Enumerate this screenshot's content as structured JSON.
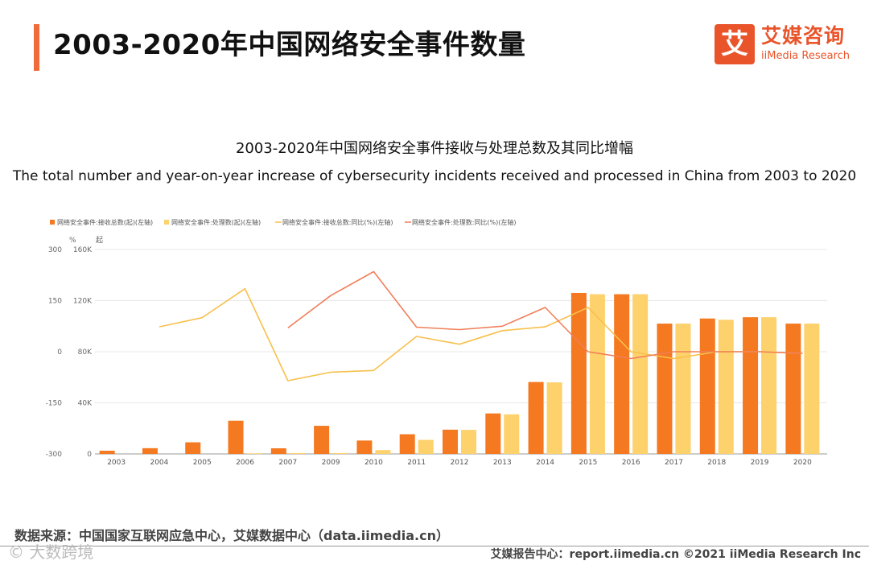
{
  "page": {
    "title": "2003-2020年中国网络安全事件数量",
    "logo_mark": "艾",
    "logo_cn": "艾媒咨询",
    "logo_en": "iiMedia Research",
    "source": "数据来源：中国国家互联网应急中心，艾媒数据中心（data.iimedia.cn）",
    "watermark": "© 大数跨境",
    "footer": "艾媒报告中心：report.iimedia.cn   ©2021  iiMedia Research  Inc"
  },
  "colors": {
    "accent": "#f06a3a",
    "received": "#f47920",
    "processed": "#fdd16b",
    "received_yoy": "#f8c04c",
    "processed_yoy": "#f07f5a"
  },
  "chart_data": {
    "type": "bar",
    "title": "2003-2020年中国网络安全事件接收与处理总数及其同比增幅",
    "subtitle": "The total number and year-on-year increase of cybersecurity incidents received and processed in China from 2003 to 2020",
    "categories": [
      "2003",
      "2004",
      "2005",
      "2006",
      "2007",
      "2009",
      "2010",
      "2011",
      "2012",
      "2013",
      "2014",
      "2015",
      "2016",
      "2017",
      "2018",
      "2019",
      "2020"
    ],
    "left_axis": {
      "label": "起",
      "ticks": [
        "0",
        "40K",
        "80K",
        "120K",
        "160K"
      ],
      "range": [
        0,
        160000
      ]
    },
    "right_axis": {
      "label": "%",
      "ticks": [
        "-300",
        "-150",
        "0",
        "150",
        "300"
      ],
      "range": [
        -300,
        300
      ]
    },
    "series": [
      {
        "name": "网络安全事件:接收总数(起)(左轴)",
        "kind": "bar",
        "axis": "left",
        "values": [
          2500,
          4500,
          9100,
          26000,
          4400,
          22000,
          10500,
          15400,
          19000,
          31700,
          56300,
          126000,
          125000,
          102000,
          106000,
          107000,
          102000
        ]
      },
      {
        "name": "网络安全事件:处理数(起)(左轴)",
        "kind": "bar",
        "axis": "left",
        "values": [
          null,
          null,
          null,
          500,
          700,
          700,
          3000,
          11000,
          18800,
          31000,
          56000,
          125000,
          125000,
          102000,
          105000,
          107000,
          102000
        ]
      },
      {
        "name": "网络安全事件:接收总数:同比(%)(左轴)",
        "kind": "line",
        "axis": "right",
        "values": [
          null,
          73,
          100,
          185,
          -85,
          -60,
          -55,
          45,
          22,
          62,
          73,
          130,
          0,
          -20,
          0,
          0,
          -5
        ]
      },
      {
        "name": "网络安全事件:处理数:同比(%)(左轴)",
        "kind": "line",
        "axis": "right",
        "values": [
          null,
          null,
          null,
          null,
          70,
          165,
          235,
          72,
          65,
          75,
          130,
          0,
          -20,
          0,
          0,
          0,
          -5
        ]
      }
    ]
  }
}
